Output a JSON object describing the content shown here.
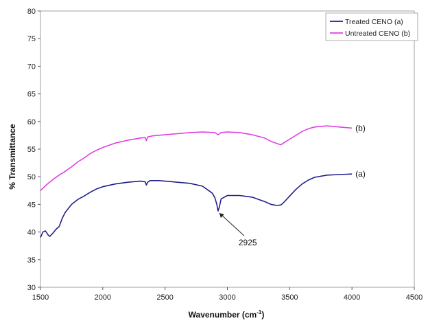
{
  "chart_data": {
    "type": "line",
    "xlabel": "Wavenumber (cm",
    "xlabel_sup": "-1",
    "xlabel_close": ")",
    "ylabel": "% Transmittance",
    "xlim": [
      1500,
      4500
    ],
    "ylim": [
      30,
      80
    ],
    "x_ticks": [
      1500,
      2000,
      2500,
      3000,
      3500,
      4000,
      4500
    ],
    "y_ticks": [
      30,
      35,
      40,
      45,
      50,
      55,
      60,
      65,
      70,
      75,
      80
    ],
    "grid": false,
    "legend_position": "top-right",
    "series": [
      {
        "name": "Treated CENO (a)",
        "end_label": "(a)",
        "color": "#1f1f8c",
        "points": [
          [
            1500,
            39.0
          ],
          [
            1520,
            40.0
          ],
          [
            1540,
            40.2
          ],
          [
            1560,
            39.5
          ],
          [
            1575,
            39.2
          ],
          [
            1600,
            39.8
          ],
          [
            1625,
            40.5
          ],
          [
            1650,
            41.0
          ],
          [
            1675,
            42.5
          ],
          [
            1700,
            43.6
          ],
          [
            1725,
            44.3
          ],
          [
            1750,
            45.0
          ],
          [
            1800,
            45.9
          ],
          [
            1850,
            46.5
          ],
          [
            1900,
            47.2
          ],
          [
            1950,
            47.8
          ],
          [
            2000,
            48.2
          ],
          [
            2100,
            48.7
          ],
          [
            2200,
            49.0
          ],
          [
            2300,
            49.2
          ],
          [
            2340,
            49.1
          ],
          [
            2350,
            48.5
          ],
          [
            2360,
            49.0
          ],
          [
            2380,
            49.3
          ],
          [
            2450,
            49.3
          ],
          [
            2500,
            49.2
          ],
          [
            2600,
            49.0
          ],
          [
            2700,
            48.8
          ],
          [
            2800,
            48.3
          ],
          [
            2850,
            47.5
          ],
          [
            2880,
            47.0
          ],
          [
            2900,
            46.2
          ],
          [
            2915,
            45.0
          ],
          [
            2925,
            43.8
          ],
          [
            2935,
            44.5
          ],
          [
            2950,
            46.0
          ],
          [
            3000,
            46.6
          ],
          [
            3100,
            46.6
          ],
          [
            3200,
            46.3
          ],
          [
            3300,
            45.5
          ],
          [
            3350,
            45.0
          ],
          [
            3400,
            44.8
          ],
          [
            3430,
            44.9
          ],
          [
            3450,
            45.3
          ],
          [
            3500,
            46.5
          ],
          [
            3550,
            47.7
          ],
          [
            3600,
            48.7
          ],
          [
            3650,
            49.4
          ],
          [
            3700,
            49.9
          ],
          [
            3800,
            50.3
          ],
          [
            3900,
            50.4
          ],
          [
            4000,
            50.5
          ]
        ]
      },
      {
        "name": "Untreated CENO (b)",
        "end_label": "(b)",
        "color": "#e040e0",
        "points": [
          [
            1500,
            47.5
          ],
          [
            1550,
            48.6
          ],
          [
            1600,
            49.5
          ],
          [
            1650,
            50.3
          ],
          [
            1700,
            51.0
          ],
          [
            1750,
            51.8
          ],
          [
            1800,
            52.7
          ],
          [
            1850,
            53.4
          ],
          [
            1900,
            54.2
          ],
          [
            1950,
            54.8
          ],
          [
            2000,
            55.3
          ],
          [
            2100,
            56.1
          ],
          [
            2200,
            56.6
          ],
          [
            2300,
            57.0
          ],
          [
            2340,
            57.1
          ],
          [
            2350,
            56.5
          ],
          [
            2360,
            57.2
          ],
          [
            2400,
            57.4
          ],
          [
            2500,
            57.6
          ],
          [
            2600,
            57.8
          ],
          [
            2700,
            58.0
          ],
          [
            2800,
            58.1
          ],
          [
            2900,
            58.0
          ],
          [
            2925,
            57.6
          ],
          [
            2950,
            58.0
          ],
          [
            3000,
            58.1
          ],
          [
            3100,
            58.0
          ],
          [
            3200,
            57.6
          ],
          [
            3300,
            57.0
          ],
          [
            3350,
            56.4
          ],
          [
            3400,
            56.0
          ],
          [
            3430,
            55.8
          ],
          [
            3450,
            56.1
          ],
          [
            3500,
            56.8
          ],
          [
            3550,
            57.5
          ],
          [
            3600,
            58.2
          ],
          [
            3650,
            58.7
          ],
          [
            3700,
            59.0
          ],
          [
            3800,
            59.2
          ],
          [
            3900,
            59.0
          ],
          [
            4000,
            58.8
          ]
        ]
      }
    ],
    "annotations": [
      {
        "text": "2925",
        "arrow_to": [
          2925,
          43.8
        ]
      }
    ]
  }
}
